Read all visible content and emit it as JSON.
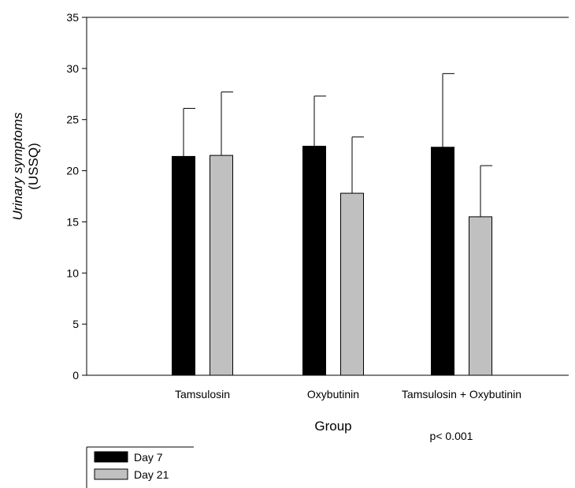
{
  "chart_data": {
    "type": "bar",
    "categories": [
      "Tamsulosin",
      "Oxybutinin",
      "Tamsulosin + Oxybutinin"
    ],
    "series": [
      {
        "name": "Day 7",
        "color": "#000000",
        "values": [
          21.4,
          22.4,
          22.3
        ],
        "error": [
          4.7,
          4.9,
          7.2
        ]
      },
      {
        "name": "Day 21",
        "color": "#c0c0c0",
        "values": [
          21.5,
          17.8,
          15.5
        ],
        "error": [
          6.2,
          5.5,
          5.0
        ]
      }
    ],
    "ylabel_line1": "Urinary symptoms",
    "ylabel_line2": "(USSQ)",
    "xlabel": "Group",
    "ylim": [
      0,
      35
    ],
    "yticks": [
      0,
      5,
      10,
      15,
      20,
      25,
      30,
      35
    ],
    "annotation": "p< 0.001",
    "legend_position": "bottom-left"
  }
}
